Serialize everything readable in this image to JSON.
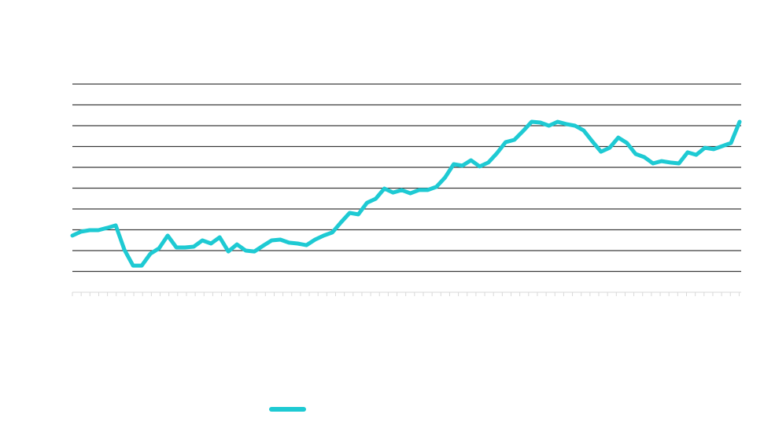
{
  "chart_data": {
    "type": "line",
    "series": [
      {
        "color": "#1ecad3",
        "values": [
          2.72,
          2.91,
          2.98,
          2.98,
          3.09,
          3.21,
          2.04,
          1.28,
          1.28,
          1.85,
          2.11,
          2.72,
          2.15,
          2.15,
          2.19,
          2.49,
          2.34,
          2.64,
          1.96,
          2.3,
          2.0,
          1.96,
          2.23,
          2.49,
          2.53,
          2.38,
          2.34,
          2.26,
          2.53,
          2.72,
          2.87,
          3.36,
          3.81,
          3.74,
          4.3,
          4.49,
          4.98,
          4.79,
          4.91,
          4.75,
          4.91,
          4.91,
          5.06,
          5.51,
          6.15,
          6.08,
          6.34,
          6.04,
          6.23,
          6.68,
          7.21,
          7.32,
          7.74,
          8.19,
          8.15,
          8.0,
          8.19,
          8.08,
          8.0,
          7.77,
          7.25,
          6.75,
          6.94,
          7.43,
          7.17,
          6.64,
          6.49,
          6.19,
          6.3,
          6.23,
          6.19,
          6.72,
          6.6,
          6.94,
          6.87,
          7.02,
          7.17,
          8.19
        ]
      }
    ],
    "ylim": [
      0,
      10
    ],
    "yticks": [
      1,
      2,
      3,
      4,
      5,
      6,
      7,
      8,
      9,
      10
    ],
    "grid": true
  }
}
